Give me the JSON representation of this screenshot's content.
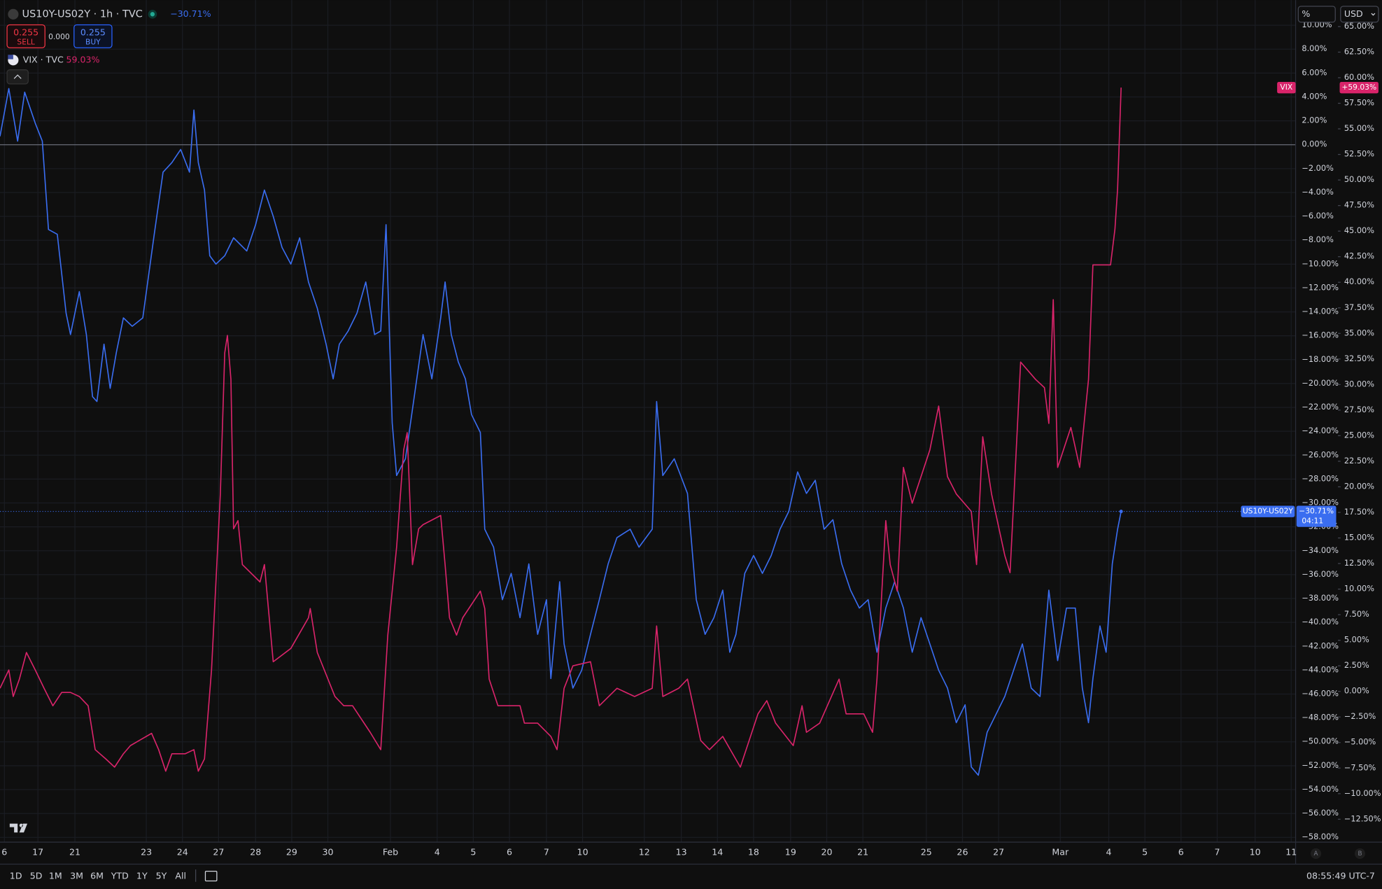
{
  "header": {
    "symbol": "US10Y-US02Y · 1h · TVC",
    "change": "−30.71%",
    "sell_price": "0.255",
    "sell": "SELL",
    "spread": "0.000",
    "buy_price": "0.255",
    "buy": "BUY",
    "compare_symbol": "VIX · TVC",
    "compare_change": "59.03%"
  },
  "toolbar": {
    "scale": "%",
    "currency": "USD"
  },
  "ranges": [
    "1D",
    "5D",
    "1M",
    "3M",
    "6M",
    "YTD",
    "1Y",
    "5Y",
    "All"
  ],
  "clock": "08:55:49 UTC-7",
  "axis_buttons": [
    "A",
    "B"
  ],
  "chart_data": {
    "type": "line",
    "grid": true,
    "xlim": [
      0,
      1470
    ],
    "xticks": [
      {
        "value": 5,
        "label": "6"
      },
      {
        "value": 43,
        "label": "17"
      },
      {
        "value": 85,
        "label": "21"
      },
      {
        "value": 166,
        "label": "23"
      },
      {
        "value": 207,
        "label": "24"
      },
      {
        "value": 248,
        "label": "27"
      },
      {
        "value": 290,
        "label": "28"
      },
      {
        "value": 331,
        "label": "29"
      },
      {
        "value": 372,
        "label": "30"
      },
      {
        "value": 443,
        "label": "Feb"
      },
      {
        "value": 496,
        "label": "4"
      },
      {
        "value": 537,
        "label": "5"
      },
      {
        "value": 578,
        "label": "6"
      },
      {
        "value": 620,
        "label": "7"
      },
      {
        "value": 661,
        "label": "10"
      },
      {
        "value": 731,
        "label": "12"
      },
      {
        "value": 773,
        "label": "13"
      },
      {
        "value": 814,
        "label": "14"
      },
      {
        "value": 855,
        "label": "18"
      },
      {
        "value": 897,
        "label": "19"
      },
      {
        "value": 938,
        "label": "20"
      },
      {
        "value": 979,
        "label": "21"
      },
      {
        "value": 1051,
        "label": "25"
      },
      {
        "value": 1092,
        "label": "26"
      },
      {
        "value": 1133,
        "label": "27"
      },
      {
        "value": 1203,
        "label": "Mar"
      },
      {
        "value": 1258,
        "label": "4"
      },
      {
        "value": 1299,
        "label": "5"
      },
      {
        "value": 1340,
        "label": "6"
      },
      {
        "value": 1381,
        "label": "7"
      },
      {
        "value": 1424,
        "label": "10"
      },
      {
        "value": 1465,
        "label": "11"
      }
    ],
    "ylim": [
      -58.4,
      10.26
    ],
    "yticks": [
      {
        "value": 10,
        "label": "10.00%"
      },
      {
        "value": 8,
        "label": "8.00%"
      },
      {
        "value": 6,
        "label": "6.00%"
      },
      {
        "value": 4,
        "label": "4.00%"
      },
      {
        "value": 2,
        "label": "2.00%"
      },
      {
        "value": 0,
        "label": "0.00%"
      },
      {
        "value": -2,
        "label": "−2.00%"
      },
      {
        "value": -4,
        "label": "−4.00%"
      },
      {
        "value": -6,
        "label": "−6.00%"
      },
      {
        "value": -8,
        "label": "−8.00%"
      },
      {
        "value": -10,
        "label": "−10.00%"
      },
      {
        "value": -12,
        "label": "−12.00%"
      },
      {
        "value": -14,
        "label": "−14.00%"
      },
      {
        "value": -16,
        "label": "−16.00%"
      },
      {
        "value": -18,
        "label": "−18.00%"
      },
      {
        "value": -20,
        "label": "−20.00%"
      },
      {
        "value": -22,
        "label": "−22.00%"
      },
      {
        "value": -24,
        "label": "−24.00%"
      },
      {
        "value": -26,
        "label": "−26.00%"
      },
      {
        "value": -28,
        "label": "−28.00%"
      },
      {
        "value": -30,
        "label": "−30.00%"
      },
      {
        "value": -32,
        "label": "−32.00%"
      },
      {
        "value": -34,
        "label": "−34.00%"
      },
      {
        "value": -36,
        "label": "−36.00%"
      },
      {
        "value": -38,
        "label": "−38.00%"
      },
      {
        "value": -40,
        "label": "−40.00%"
      },
      {
        "value": -42,
        "label": "−42.00%"
      },
      {
        "value": -44,
        "label": "−44.00%"
      },
      {
        "value": -46,
        "label": "−46.00%"
      },
      {
        "value": -48,
        "label": "−48.00%"
      },
      {
        "value": -50,
        "label": "−50.00%"
      },
      {
        "value": -52,
        "label": "−52.00%"
      },
      {
        "value": -54,
        "label": "−54.00%"
      },
      {
        "value": -56,
        "label": "−56.00%"
      },
      {
        "value": -58,
        "label": "−58.00%"
      }
    ],
    "y2lim": [
      -14.74,
      65.43
    ],
    "y2ticks": [
      {
        "value": 65,
        "label": "65.00%"
      },
      {
        "value": 62.5,
        "label": "62.50%"
      },
      {
        "value": 60,
        "label": "60.00%"
      },
      {
        "value": 57.5,
        "label": "57.50%"
      },
      {
        "value": 55,
        "label": "55.00%"
      },
      {
        "value": 52.5,
        "label": "52.50%"
      },
      {
        "value": 50,
        "label": "50.00%"
      },
      {
        "value": 47.5,
        "label": "47.50%"
      },
      {
        "value": 45,
        "label": "45.00%"
      },
      {
        "value": 42.5,
        "label": "42.50%"
      },
      {
        "value": 40,
        "label": "40.00%"
      },
      {
        "value": 37.5,
        "label": "37.50%"
      },
      {
        "value": 35,
        "label": "35.00%"
      },
      {
        "value": 32.5,
        "label": "32.50%"
      },
      {
        "value": 30,
        "label": "30.00%"
      },
      {
        "value": 27.5,
        "label": "27.50%"
      },
      {
        "value": 25,
        "label": "25.00%"
      },
      {
        "value": 22.5,
        "label": "22.50%"
      },
      {
        "value": 20,
        "label": "20.00%"
      },
      {
        "value": 17.5,
        "label": "17.50%"
      },
      {
        "value": 15,
        "label": "15.00%"
      },
      {
        "value": 12.5,
        "label": "12.50%"
      },
      {
        "value": 10,
        "label": "10.00%"
      },
      {
        "value": 7.5,
        "label": "7.50%"
      },
      {
        "value": 5,
        "label": "5.00%"
      },
      {
        "value": 2.5,
        "label": "2.50%"
      },
      {
        "value": 0,
        "label": "0.00%"
      },
      {
        "value": -2.5,
        "label": "−2.50%"
      },
      {
        "value": -5,
        "label": "−5.00%"
      },
      {
        "value": -7.5,
        "label": "−7.50%"
      },
      {
        "value": -10,
        "label": "−10.00%"
      },
      {
        "value": -12.5,
        "label": "−12.50%"
      }
    ],
    "series": [
      {
        "name": "US10Y-US02Y",
        "color": "#3a6df0",
        "last_label": "−30.71%",
        "countdown": "04:11",
        "x": [
          0,
          10,
          20,
          28,
          40,
          48,
          55,
          65,
          75,
          80,
          90,
          98,
          105,
          110,
          118,
          125,
          132,
          140,
          150,
          162,
          175,
          185,
          195,
          205,
          215,
          220,
          225,
          232,
          238,
          245,
          255,
          265,
          280,
          290,
          300,
          310,
          320,
          330,
          340,
          350,
          360,
          370,
          378,
          385,
          395,
          405,
          415,
          425,
          432,
          438,
          445,
          450,
          460,
          470,
          480,
          490,
          500,
          505,
          512,
          520,
          528,
          535,
          545,
          550,
          560,
          570,
          580,
          590,
          600,
          610,
          620,
          625,
          635,
          640,
          650,
          660,
          670,
          680,
          690,
          700,
          715,
          725,
          740,
          745,
          752,
          765,
          780,
          790,
          800,
          810,
          820,
          828,
          835,
          845,
          855,
          865,
          875,
          885,
          895,
          905,
          915,
          925,
          935,
          945,
          955,
          965,
          975,
          985,
          995,
          1005,
          1015,
          1025,
          1035,
          1045,
          1055,
          1065,
          1075,
          1085,
          1095,
          1102,
          1110,
          1120,
          1130,
          1140,
          1150,
          1160,
          1170,
          1180,
          1190,
          1200,
          1210,
          1220,
          1228,
          1235,
          1240,
          1248,
          1255,
          1262,
          1268,
          1272
        ],
        "values": [
          0.7,
          4.7,
          0.3,
          4.4,
          1.8,
          0.3,
          -7.1,
          -7.5,
          -14.1,
          -15.9,
          -12.3,
          -15.9,
          -21.1,
          -21.5,
          -16.7,
          -20.4,
          -17.4,
          -14.5,
          -15.2,
          -14.5,
          -7.5,
          -2.3,
          -1.5,
          -0.4,
          -2.3,
          2.9,
          -1.5,
          -3.8,
          -9.3,
          -10.0,
          -9.3,
          -7.8,
          -8.9,
          -6.7,
          -3.8,
          -6.0,
          -8.6,
          -10.0,
          -7.8,
          -11.5,
          -13.7,
          -16.7,
          -19.6,
          -16.7,
          -15.6,
          -14.1,
          -11.5,
          -15.9,
          -15.6,
          -6.7,
          -23.3,
          -27.7,
          -26.3,
          -21.1,
          -15.9,
          -19.6,
          -14.5,
          -11.5,
          -15.9,
          -18.2,
          -19.6,
          -22.6,
          -24.1,
          -32.2,
          -33.7,
          -38.1,
          -35.9,
          -39.6,
          -35.1,
          -41.0,
          -38.1,
          -44.7,
          -36.6,
          -41.8,
          -45.5,
          -44.0,
          -41.0,
          -38.1,
          -35.1,
          -32.9,
          -32.2,
          -33.7,
          -32.2,
          -21.5,
          -27.7,
          -26.3,
          -29.2,
          -38.1,
          -41.0,
          -39.6,
          -37.3,
          -42.5,
          -41.0,
          -35.9,
          -34.4,
          -35.9,
          -34.4,
          -32.2,
          -30.7,
          -27.4,
          -29.2,
          -28.1,
          -32.2,
          -31.4,
          -35.1,
          -37.3,
          -38.8,
          -38.1,
          -42.5,
          -38.8,
          -36.6,
          -38.8,
          -42.5,
          -39.6,
          -41.8,
          -44.0,
          -45.5,
          -48.4,
          -46.9,
          -52.1,
          -52.8,
          -49.2,
          -47.7,
          -46.2,
          -44.0,
          -41.8,
          -45.5,
          -46.2,
          -37.3,
          -43.2,
          -38.8,
          -38.8,
          -45.5,
          -48.4,
          -44.7,
          -40.3,
          -42.5,
          -35.1,
          -32.2,
          -30.71
        ]
      },
      {
        "name": "VIX",
        "color": "#d9246a",
        "axis": "y2",
        "last_label": "+59.03%",
        "x": [
          0,
          10,
          15,
          22,
          30,
          40,
          50,
          60,
          70,
          80,
          90,
          100,
          108,
          120,
          130,
          140,
          148,
          158,
          172,
          180,
          188,
          195,
          210,
          220,
          225,
          232,
          240,
          250,
          255,
          258,
          262,
          265,
          270,
          275,
          295,
          300,
          310,
          330,
          350,
          352,
          360,
          380,
          390,
          400,
          420,
          432,
          440,
          450,
          458,
          462,
          468,
          475,
          480,
          500,
          505,
          510,
          518,
          525,
          545,
          550,
          555,
          565,
          580,
          590,
          595,
          610,
          625,
          632,
          640,
          650,
          670,
          680,
          700,
          720,
          740,
          745,
          752,
          770,
          780,
          795,
          805,
          820,
          840,
          860,
          870,
          880,
          900,
          910,
          915,
          930,
          952,
          960,
          980,
          990,
          995,
          1005,
          1010,
          1018,
          1025,
          1035,
          1055,
          1065,
          1075,
          1085,
          1102,
          1108,
          1115,
          1125,
          1140,
          1146,
          1150,
          1158,
          1175,
          1185,
          1190,
          1195,
          1200,
          1215,
          1225,
          1235,
          1240,
          1260,
          1265,
          1268,
          1272
        ],
        "values": [
          0.3,
          2.1,
          -0.5,
          1.2,
          3.8,
          2.1,
          0.3,
          -1.4,
          -0.1,
          -0.1,
          -0.5,
          -1.4,
          -5.7,
          -6.6,
          -7.4,
          -6.1,
          -5.3,
          -4.8,
          -4.1,
          -5.7,
          -7.8,
          -6.1,
          -6.1,
          -5.7,
          -7.8,
          -6.6,
          2.1,
          19.3,
          33.1,
          34.8,
          30.5,
          15.9,
          16.7,
          12.4,
          10.7,
          12.4,
          2.9,
          4.2,
          7.2,
          8.1,
          3.8,
          -0.5,
          -1.4,
          -1.4,
          -4.0,
          -5.7,
          5.5,
          14.1,
          23.6,
          25.3,
          12.4,
          15.9,
          16.3,
          17.2,
          12.4,
          7.2,
          5.5,
          7.2,
          9.8,
          8.1,
          1.2,
          -1.4,
          -1.4,
          -1.4,
          -3.1,
          -3.1,
          -4.4,
          -5.7,
          0.3,
          2.5,
          2.9,
          -1.4,
          0.3,
          -0.5,
          0.3,
          6.4,
          -0.5,
          0.3,
          1.2,
          -4.8,
          -5.7,
          -4.4,
          -7.4,
          -2.2,
          -0.9,
          -3.1,
          -5.3,
          -1.4,
          -4.0,
          -3.1,
          1.2,
          -2.2,
          -2.2,
          -4.0,
          1.2,
          16.7,
          12.4,
          9.8,
          21.9,
          18.4,
          23.6,
          27.9,
          21.0,
          19.3,
          17.6,
          12.4,
          24.9,
          19.3,
          13.3,
          11.6,
          18.4,
          32.2,
          30.5,
          29.7,
          26.2,
          38.3,
          21.9,
          25.8,
          21.9,
          30.5,
          41.7,
          41.7,
          45.2,
          49.1,
          59.03
        ]
      }
    ]
  }
}
